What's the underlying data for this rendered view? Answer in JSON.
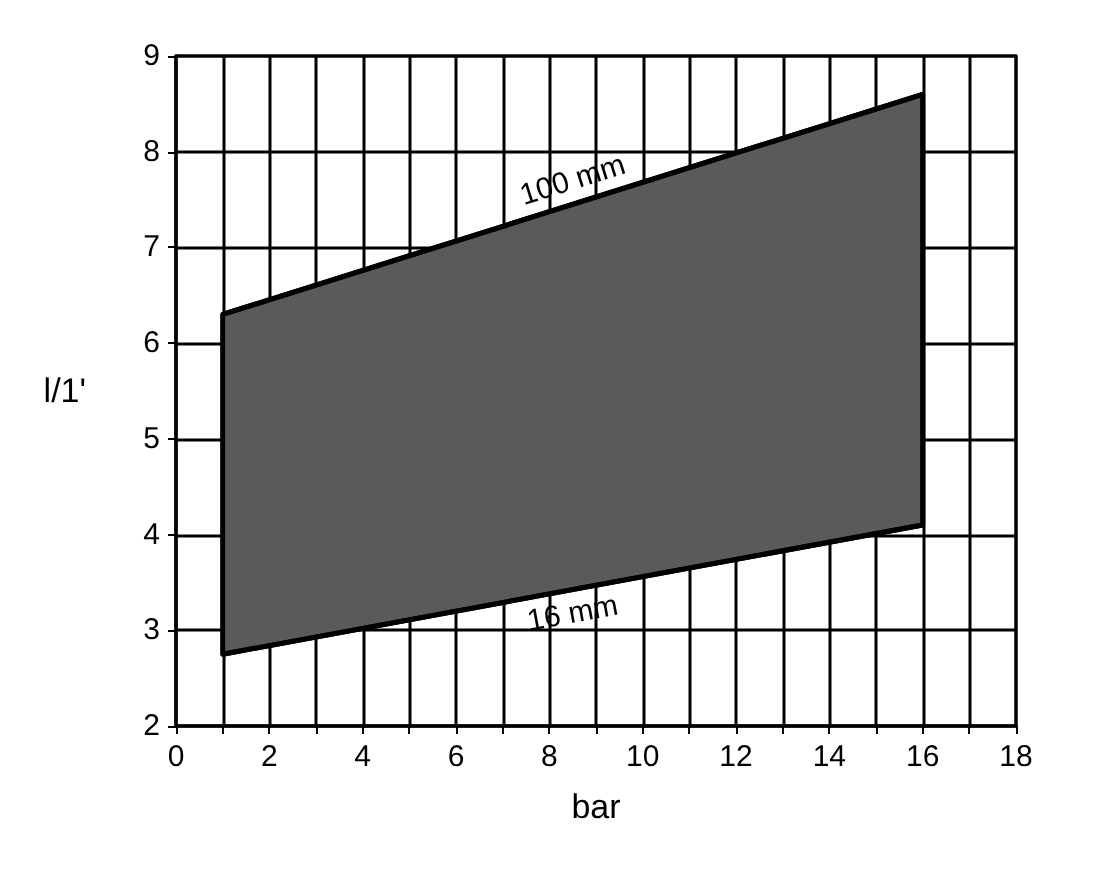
{
  "chart_data": {
    "type": "line",
    "xlabel": "bar",
    "ylabel": "l/1'",
    "xlim": [
      0,
      18
    ],
    "xticks": [
      0,
      {
        "value": 1,
        "label": null
      },
      2,
      {
        "value": 3,
        "label": null
      },
      4,
      {
        "value": 5,
        "label": null
      },
      6,
      {
        "value": 7,
        "label": null
      },
      8,
      {
        "value": 9,
        "label": null
      },
      10,
      {
        "value": 11,
        "label": null
      },
      12,
      {
        "value": 13,
        "label": null
      },
      14,
      {
        "value": 15,
        "label": null
      },
      16,
      {
        "value": 17,
        "label": null
      },
      18
    ],
    "x": [
      1,
      16
    ],
    "ylim": [
      2,
      9
    ],
    "yticks": [
      2,
      3,
      4,
      5,
      6,
      7,
      8,
      9
    ],
    "grid": true,
    "legend": false,
    "series": [
      {
        "name": "100 mm",
        "type": "area",
        "values": [
          6.3,
          8.6
        ],
        "color": "#5a5a5a"
      },
      {
        "name": "16 mm",
        "values": [
          2.75,
          4.1
        ],
        "color": "#000000"
      }
    ]
  }
}
